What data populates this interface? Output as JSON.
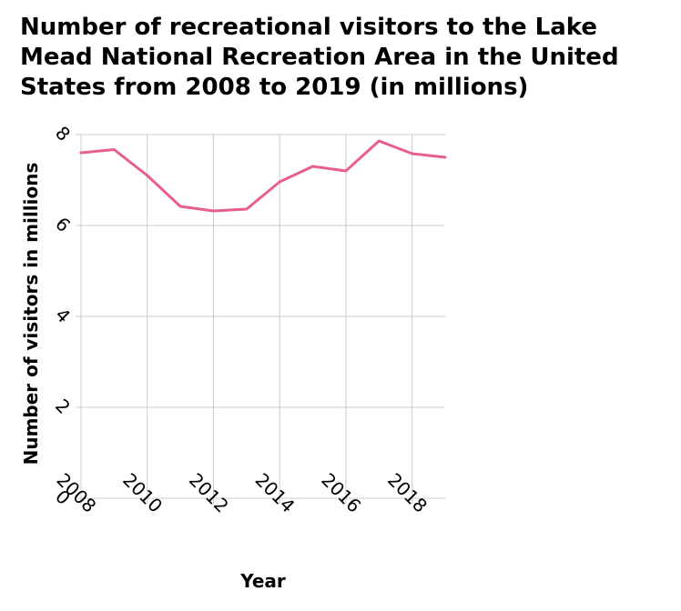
{
  "chart_data": {
    "type": "line",
    "title": "Number of recreational visitors to the Lake Mead National Recreation Area in the United States from 2008 to 2019 (in millions)",
    "xlabel": "Year",
    "ylabel": "Number of visitors in millions",
    "x": [
      2008,
      2009,
      2010,
      2011,
      2012,
      2013,
      2014,
      2015,
      2016,
      2017,
      2018,
      2019
    ],
    "series": [
      {
        "values": [
          7.6,
          7.67,
          7.1,
          6.42,
          6.32,
          6.36,
          6.96,
          7.3,
          7.2,
          7.86,
          7.58,
          7.5
        ]
      }
    ],
    "xticks": [
      "2008",
      "2010",
      "2012",
      "2014",
      "2016",
      "2018"
    ],
    "yticks": [
      "0",
      "2",
      "4",
      "6",
      "8"
    ],
    "xlim": [
      2008,
      2019
    ],
    "ylim": [
      0,
      8
    ],
    "grid": true,
    "line_color": "#e8608a"
  }
}
